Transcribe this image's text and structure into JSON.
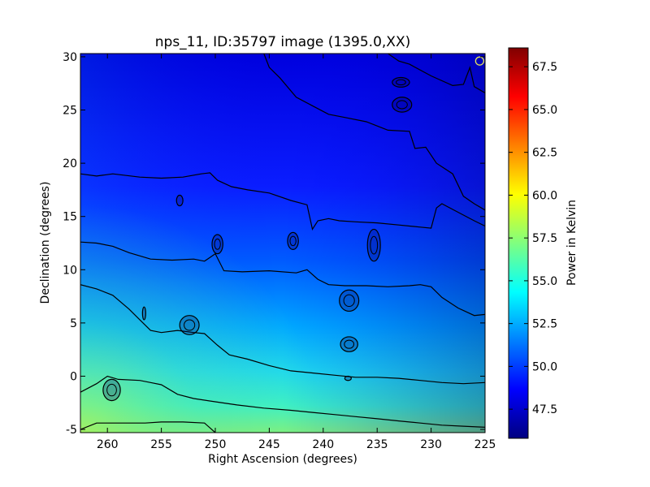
{
  "chart_data": {
    "type": "heatmap",
    "title": "nps_11, ID:35797 image (1395.0,XX)",
    "xlabel": "Right Ascension (degrees)",
    "ylabel": "Declination (degrees)",
    "xlim": [
      262.5,
      225
    ],
    "ylim": [
      -5.3,
      30.3
    ],
    "x_ticks": [
      260,
      255,
      250,
      245,
      240,
      235,
      230,
      225
    ],
    "y_ticks": [
      -5,
      0,
      5,
      10,
      15,
      20,
      25,
      30
    ],
    "colorbar": {
      "label": "Power in Kelvin",
      "range": [
        45.8,
        68.6
      ],
      "ticks": [
        47.5,
        50.0,
        52.5,
        55.0,
        57.5,
        60.0,
        62.5,
        65.0,
        67.5
      ],
      "tick_labels": [
        "47.5",
        "50.0",
        "52.5",
        "55.0",
        "57.5",
        "60.0",
        "62.5",
        "65.0",
        "67.5"
      ],
      "colormap": "jet"
    },
    "grid": false,
    "contours": [
      {
        "name": "c1",
        "points": [
          [
            262.5,
            19.0
          ],
          [
            261,
            18.8
          ],
          [
            259.5,
            19.0
          ],
          [
            257,
            18.7
          ],
          [
            255,
            18.6
          ],
          [
            253,
            18.7
          ],
          [
            251.3,
            19.0
          ],
          [
            250.5,
            19.1
          ],
          [
            249.8,
            18.4
          ],
          [
            248.5,
            17.8
          ],
          [
            247,
            17.5
          ],
          [
            245,
            17.2
          ],
          [
            243,
            16.5
          ],
          [
            241.5,
            16.1
          ],
          [
            241,
            13.8
          ],
          [
            240.5,
            14.6
          ],
          [
            239.5,
            14.8
          ],
          [
            238.5,
            14.6
          ],
          [
            237,
            14.5
          ],
          [
            235,
            14.4
          ],
          [
            233,
            14.2
          ],
          [
            231,
            14.0
          ],
          [
            230,
            13.9
          ],
          [
            229.5,
            15.8
          ],
          [
            229,
            16.2
          ],
          [
            227.5,
            15.4
          ],
          [
            226,
            14.6
          ],
          [
            225,
            14.1
          ]
        ]
      },
      {
        "name": "c2",
        "points": [
          [
            262.5,
            12.6
          ],
          [
            261,
            12.5
          ],
          [
            259.5,
            12.2
          ],
          [
            258,
            11.6
          ],
          [
            256,
            11.0
          ],
          [
            254,
            10.9
          ],
          [
            252,
            11.0
          ],
          [
            251,
            10.8
          ],
          [
            250,
            11.5
          ],
          [
            249.2,
            9.9
          ],
          [
            247.5,
            9.8
          ],
          [
            245,
            9.9
          ],
          [
            242.5,
            9.7
          ],
          [
            241.5,
            10.0
          ],
          [
            240.5,
            9.1
          ],
          [
            239.5,
            8.6
          ],
          [
            238,
            8.5
          ],
          [
            236,
            8.5
          ],
          [
            234,
            8.4
          ],
          [
            232,
            8.5
          ],
          [
            231,
            8.6
          ],
          [
            230,
            8.4
          ],
          [
            229,
            7.4
          ],
          [
            227.5,
            6.4
          ],
          [
            226,
            5.7
          ],
          [
            225,
            5.8
          ]
        ]
      },
      {
        "name": "c3",
        "points": [
          [
            262.5,
            8.6
          ],
          [
            261,
            8.2
          ],
          [
            259.5,
            7.6
          ],
          [
            258,
            6.3
          ],
          [
            257,
            5.3
          ],
          [
            256,
            4.3
          ],
          [
            255,
            4.1
          ],
          [
            253.5,
            4.3
          ],
          [
            252,
            4.1
          ],
          [
            251,
            4.0
          ],
          [
            249.8,
            2.9
          ],
          [
            248.7,
            2.0
          ],
          [
            247,
            1.6
          ],
          [
            245,
            1.0
          ],
          [
            243,
            0.5
          ],
          [
            241,
            0.3
          ],
          [
            239,
            0.1
          ],
          [
            237,
            -0.1
          ],
          [
            235,
            -0.1
          ],
          [
            233,
            -0.2
          ],
          [
            231,
            -0.4
          ],
          [
            229,
            -0.6
          ],
          [
            227,
            -0.7
          ],
          [
            225,
            -0.6
          ]
        ]
      },
      {
        "name": "c4",
        "points": [
          [
            262.5,
            -1.5
          ],
          [
            261,
            -0.7
          ],
          [
            260,
            0.0
          ],
          [
            259,
            -0.3
          ],
          [
            257,
            -0.4
          ],
          [
            256,
            -0.6
          ],
          [
            255,
            -0.8
          ],
          [
            253.5,
            -1.7
          ],
          [
            252,
            -2.1
          ],
          [
            250,
            -2.4
          ],
          [
            248,
            -2.7
          ],
          [
            245.5,
            -3.0
          ],
          [
            243,
            -3.2
          ],
          [
            241,
            -3.4
          ],
          [
            239,
            -3.6
          ],
          [
            237,
            -3.8
          ],
          [
            235,
            -4.0
          ],
          [
            233,
            -4.2
          ],
          [
            231,
            -4.4
          ],
          [
            229,
            -4.6
          ],
          [
            227,
            -4.7
          ],
          [
            225,
            -4.8
          ]
        ]
      },
      {
        "name": "c5",
        "points": [
          [
            262.5,
            -5.0
          ],
          [
            261,
            -4.4
          ],
          [
            259,
            -4.4
          ],
          [
            256.5,
            -4.4
          ],
          [
            255,
            -4.3
          ],
          [
            253,
            -4.3
          ],
          [
            251,
            -4.4
          ],
          [
            250,
            -5.3
          ]
        ]
      },
      {
        "name": "c6",
        "points": [
          [
            245.5,
            30.3
          ],
          [
            245,
            29.0
          ],
          [
            244,
            28.0
          ],
          [
            242.5,
            26.2
          ],
          [
            241,
            25.4
          ],
          [
            239.5,
            24.6
          ],
          [
            238,
            24.3
          ],
          [
            236,
            23.9
          ],
          [
            234,
            23.1
          ],
          [
            232,
            23.0
          ],
          [
            231.5,
            21.4
          ],
          [
            230.5,
            21.5
          ],
          [
            229.5,
            20.0
          ],
          [
            228,
            19.0
          ],
          [
            227,
            16.9
          ],
          [
            226,
            16.2
          ],
          [
            225,
            15.6
          ]
        ]
      },
      {
        "name": "c7",
        "points": [
          [
            234,
            30.3
          ],
          [
            233,
            29.6
          ],
          [
            232,
            29.3
          ],
          [
            230,
            28.2
          ],
          [
            228,
            27.3
          ],
          [
            227,
            27.4
          ],
          [
            226.4,
            29.0
          ],
          [
            226,
            27.2
          ],
          [
            225,
            26.6
          ]
        ]
      }
    ],
    "blobs": [
      {
        "name": "b1",
        "x": 232.7,
        "y": 25.5,
        "rx": 0.9,
        "ry": 0.7
      },
      {
        "name": "b2",
        "x": 232.8,
        "y": 27.6,
        "rx": 0.8,
        "ry": 0.45
      },
      {
        "name": "b3",
        "x": 237.6,
        "y": 7.1,
        "rx": 0.9,
        "ry": 1.0
      },
      {
        "name": "b4",
        "x": 237.6,
        "y": 3.0,
        "rx": 0.8,
        "ry": 0.7
      },
      {
        "name": "b5",
        "x": 235.3,
        "y": 12.3,
        "rx": 0.6,
        "ry": 1.5
      },
      {
        "name": "b6",
        "x": 252.4,
        "y": 4.8,
        "rx": 0.9,
        "ry": 0.9
      },
      {
        "name": "b7",
        "x": 249.8,
        "y": 12.4,
        "rx": 0.5,
        "ry": 0.9
      },
      {
        "name": "b8",
        "x": 259.6,
        "y": -1.3,
        "rx": 0.8,
        "ry": 1.0
      },
      {
        "name": "b9",
        "x": 253.3,
        "y": 16.5,
        "rx": 0.3,
        "ry": 0.5
      },
      {
        "name": "b10",
        "x": 242.8,
        "y": 12.7,
        "rx": 0.5,
        "ry": 0.8
      },
      {
        "name": "b11",
        "x": 237.7,
        "y": -0.2,
        "rx": 0.3,
        "ry": 0.2
      },
      {
        "name": "b12",
        "x": 256.6,
        "y": 5.9,
        "rx": 0.15,
        "ry": 0.6
      }
    ],
    "marker": {
      "x": 225.5,
      "y": 29.6,
      "color": "#e6e65a"
    }
  }
}
